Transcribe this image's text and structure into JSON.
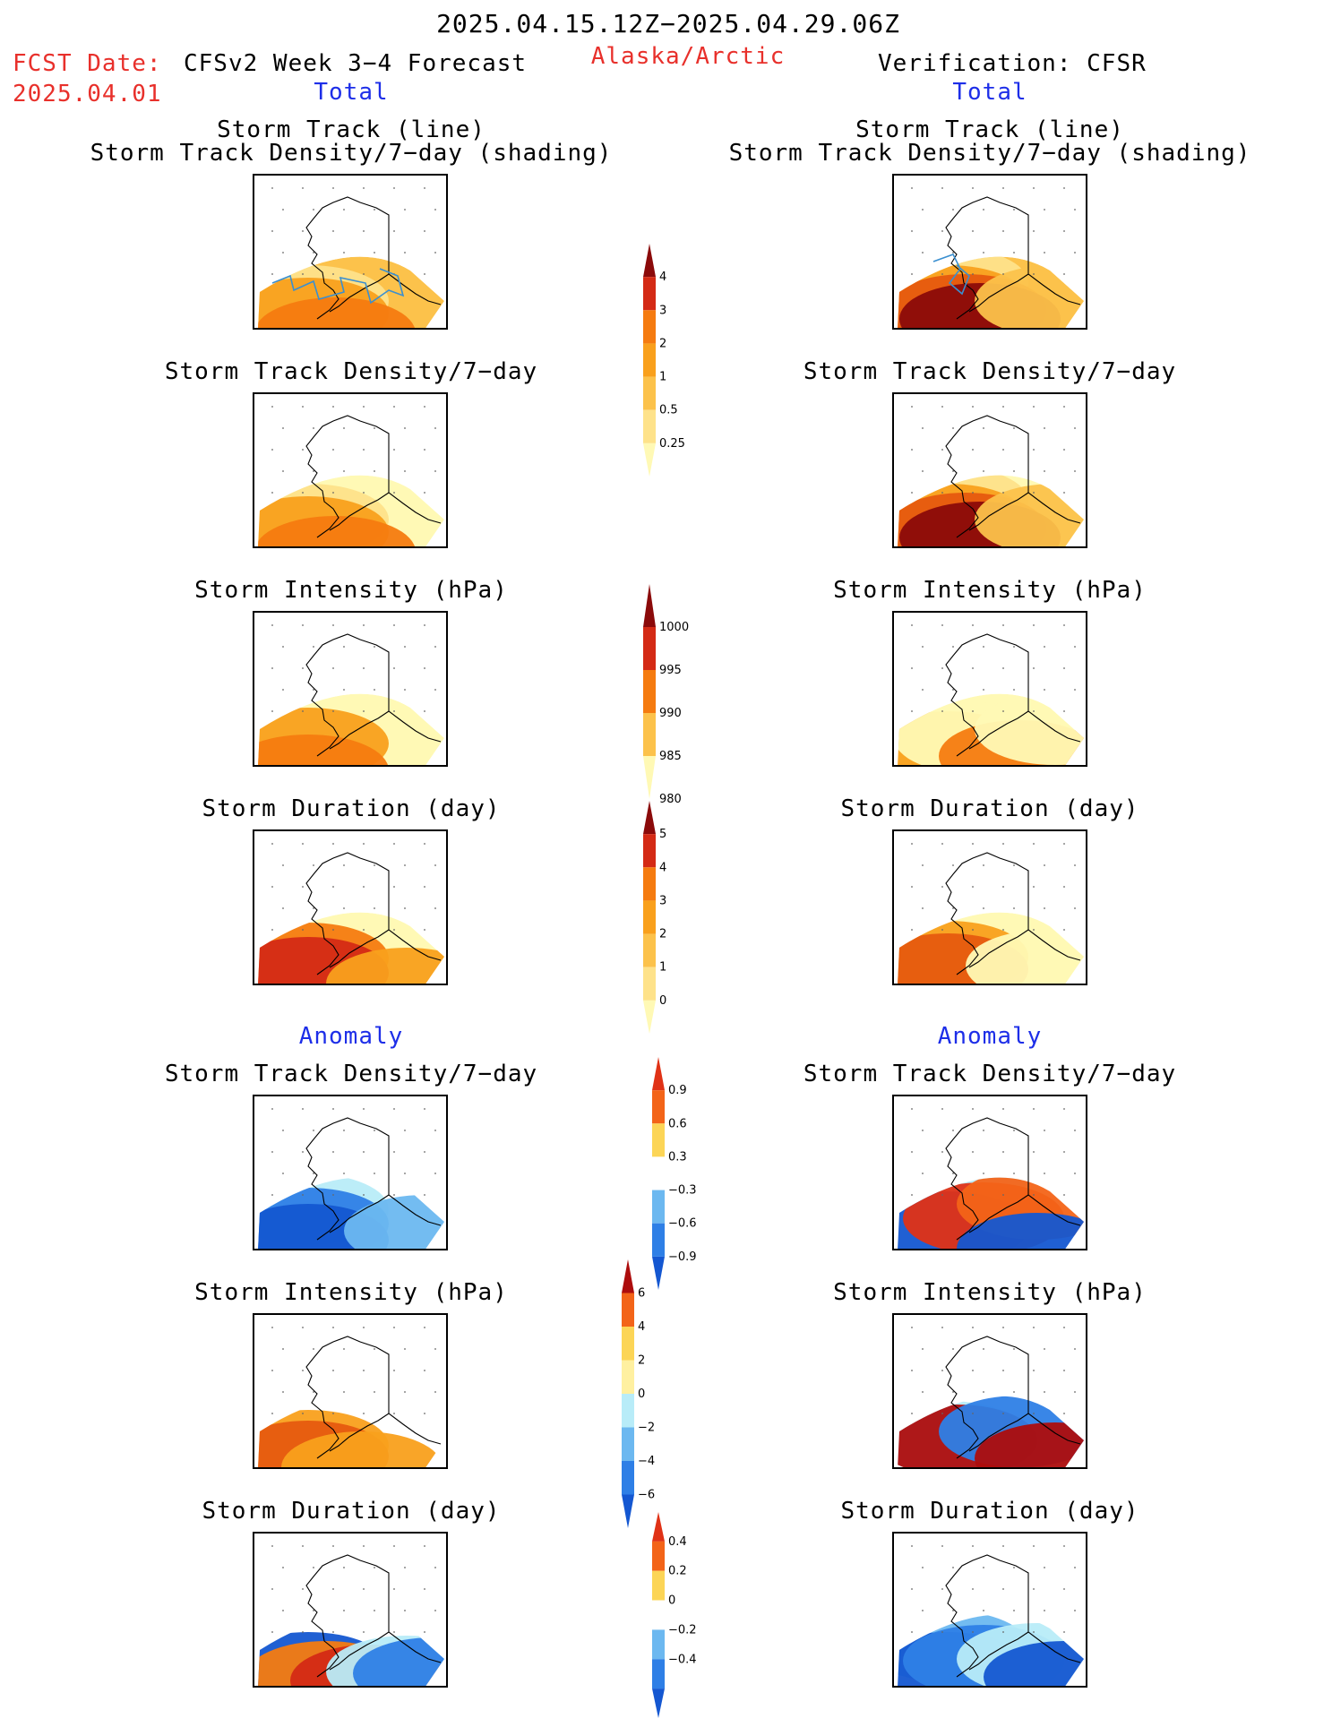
{
  "header": {
    "period": "2025.04.15.12Z−2025.04.29.06Z",
    "fcst_label": "FCST Date:",
    "fcst_date": "2025.04.01",
    "left_model": "CFSv2 Week 3−4 Forecast",
    "region": "Alaska/Arctic",
    "right_model": "Verification: CFSR",
    "total_left": "Total",
    "total_right": "Total",
    "anomaly_left": "Anomaly",
    "anomaly_right": "Anomaly"
  },
  "titles": {
    "track_line": "Storm Track (line)",
    "track_shading": "Storm Track Density/7−day (shading)",
    "density": "Storm Track Density/7−day",
    "intensity": "Storm Intensity (hPa)",
    "duration": "Storm Duration (day)"
  },
  "colorbars": {
    "density": [
      "4",
      "3",
      "2",
      "1",
      "0.5",
      "0.25"
    ],
    "intensity": [
      "1000",
      "995",
      "990",
      "985",
      "980"
    ],
    "duration": [
      "5",
      "4",
      "3",
      "2",
      "1",
      "0"
    ],
    "density_anom": [
      "0.9",
      "0.6",
      "0.3",
      "−0.3",
      "−0.6",
      "−0.9"
    ],
    "intensity_anom": [
      "6",
      "4",
      "2",
      "0",
      "−2",
      "−4",
      "−6"
    ],
    "duration_anom": [
      "0.4",
      "0.2",
      "0",
      "−0.2",
      "−0.4"
    ]
  },
  "colors": {
    "warm": [
      "#fff9b5",
      "#fee28a",
      "#fcc24b",
      "#f9a01c",
      "#f57b10",
      "#e65a0f",
      "#d42a15",
      "#b3130e",
      "#8b0a0a"
    ],
    "anom": [
      "#1457d1",
      "#2e7fe6",
      "#6cb8f0",
      "#b8ecf8",
      "#ffffff",
      "#fff0a0",
      "#fcd556",
      "#f9a01c",
      "#f36418",
      "#e03216",
      "#ad0d0d"
    ],
    "track_line": "#3a8fd0"
  }
}
